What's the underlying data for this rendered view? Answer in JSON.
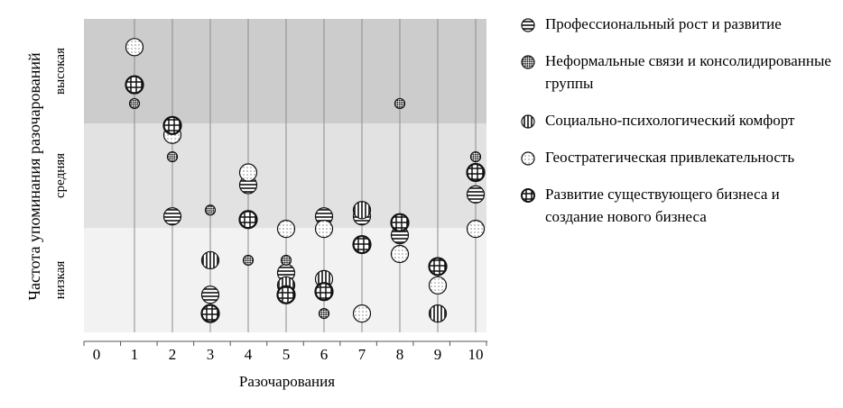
{
  "chart_data": {
    "type": "scatter",
    "xlabel": "Разочарования",
    "ylabel": "Частота  упоминания разочарований",
    "x_ticks": [
      "0",
      "1",
      "2",
      "3",
      "4",
      "5",
      "6",
      "7",
      "8",
      "9",
      "10"
    ],
    "xlim": [
      0,
      10
    ],
    "bands": [
      {
        "label": "высокая",
        "color": "#cccccc"
      },
      {
        "label": "средняя",
        "color": "#e2e2e2"
      },
      {
        "label": "низкая",
        "color": "#f2f2f2"
      }
    ],
    "ylim": [
      0,
      100
    ],
    "grid": "vertical",
    "legend_position": "right",
    "series": [
      {
        "name": "Профессиональный рост и развитие",
        "pattern": "horizontal",
        "points": [
          [
            2,
            37
          ],
          [
            3,
            12
          ],
          [
            4,
            47
          ],
          [
            5,
            19
          ],
          [
            5,
            12
          ],
          [
            6,
            37
          ],
          [
            7,
            37
          ],
          [
            8,
            31
          ],
          [
            10,
            44
          ]
        ]
      },
      {
        "name": "Неформальные связи и консолидированные группы",
        "pattern": "dots",
        "points": [
          [
            1,
            73
          ],
          [
            2,
            56
          ],
          [
            3,
            39
          ],
          [
            4,
            23
          ],
          [
            5,
            23
          ],
          [
            6,
            6
          ],
          [
            8,
            73
          ],
          [
            10,
            56
          ]
        ]
      },
      {
        "name": "Социально-психологический комфорт",
        "pattern": "vertical",
        "points": [
          [
            3,
            23
          ],
          [
            5,
            15
          ],
          [
            6,
            17
          ],
          [
            7,
            39
          ],
          [
            9,
            6
          ]
        ]
      },
      {
        "name": "Геостратегическая привлекательность",
        "pattern": "circles",
        "points": [
          [
            1,
            91
          ],
          [
            2,
            63
          ],
          [
            4,
            51
          ],
          [
            5,
            33
          ],
          [
            6,
            33
          ],
          [
            7,
            6
          ],
          [
            8,
            25
          ],
          [
            9,
            15
          ],
          [
            10,
            33
          ]
        ]
      },
      {
        "name": "Развитие существующего бизнеса и создание нового бизнеса",
        "pattern": "grid",
        "points": [
          [
            1,
            79
          ],
          [
            2,
            66
          ],
          [
            3,
            6
          ],
          [
            4,
            36
          ],
          [
            5,
            12
          ],
          [
            6,
            13
          ],
          [
            7,
            28
          ],
          [
            8,
            35
          ],
          [
            9,
            21
          ],
          [
            10,
            51
          ]
        ]
      }
    ]
  }
}
